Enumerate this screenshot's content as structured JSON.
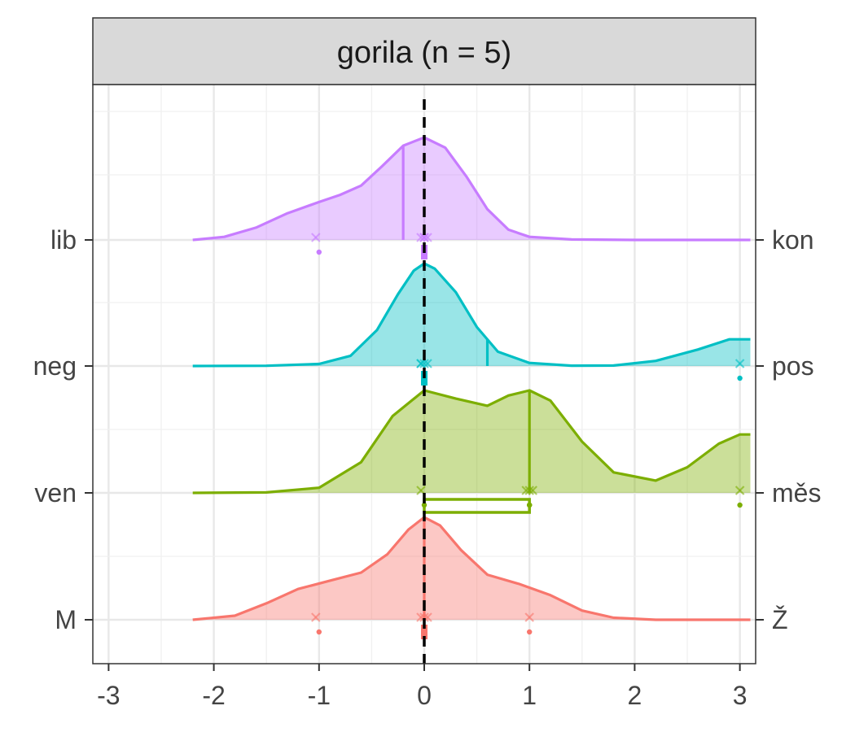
{
  "chart_data": {
    "type": "ridgeline",
    "facet_title": "gorila (n = 5)",
    "xlabel": "",
    "ylabel": "",
    "xlim": [
      -3.15,
      3.15
    ],
    "x_ticks": [
      "-3",
      "-2",
      "-1",
      "0",
      "1",
      "2",
      "3"
    ],
    "x_tick_values": [
      -3,
      -2,
      -1,
      0,
      1,
      2,
      3
    ],
    "reference_line_x": 0,
    "grid": true,
    "legend": "none",
    "series": [
      {
        "left_label": "lib",
        "right_label": "kon",
        "color": "#C77CFF",
        "density_x": [
          -2.2,
          -1.9,
          -1.6,
          -1.3,
          -1.0,
          -0.8,
          -0.6,
          -0.4,
          -0.2,
          0.0,
          0.2,
          0.4,
          0.6,
          0.8,
          1.0,
          1.4,
          2.0,
          3.1
        ],
        "density_y": [
          0.0,
          0.03,
          0.12,
          0.26,
          0.37,
          0.44,
          0.53,
          0.72,
          0.92,
          1.0,
          0.9,
          0.62,
          0.3,
          0.1,
          0.03,
          0.005,
          0.0,
          0.0
        ],
        "median_x": -0.2,
        "points_x": [
          -1.0,
          0.0,
          0.0,
          0.0,
          0.0
        ]
      },
      {
        "left_label": "neg",
        "right_label": "pos",
        "color": "#00BFC4",
        "density_x": [
          -2.2,
          -1.5,
          -1.0,
          -0.7,
          -0.45,
          -0.25,
          -0.1,
          0.0,
          0.1,
          0.3,
          0.5,
          0.7,
          1.0,
          1.4,
          1.8,
          2.2,
          2.6,
          2.9,
          3.1
        ],
        "density_y": [
          0.0,
          0.002,
          0.02,
          0.1,
          0.35,
          0.7,
          0.93,
          1.0,
          0.95,
          0.72,
          0.38,
          0.14,
          0.03,
          0.003,
          0.005,
          0.05,
          0.16,
          0.26,
          0.26
        ],
        "median_x": 0.6,
        "points_x": [
          0.0,
          0.0,
          0.0,
          0.0,
          3.0
        ]
      },
      {
        "left_label": "ven",
        "right_label": "měs",
        "color": "#7CAE00",
        "density_x": [
          -2.2,
          -1.5,
          -1.0,
          -0.6,
          -0.3,
          0.0,
          0.3,
          0.6,
          0.8,
          1.0,
          1.2,
          1.5,
          1.8,
          2.2,
          2.5,
          2.8,
          3.0,
          3.1
        ],
        "density_y": [
          0.0,
          0.005,
          0.05,
          0.3,
          0.75,
          1.0,
          0.92,
          0.85,
          0.95,
          1.0,
          0.9,
          0.5,
          0.2,
          0.12,
          0.25,
          0.48,
          0.57,
          0.57
        ],
        "median_x": 1.0,
        "box": [
          0.0,
          1.0
        ],
        "points_x": [
          0.0,
          1.0,
          1.0,
          1.0,
          3.0
        ]
      },
      {
        "left_label": "M",
        "right_label": "Ž",
        "color": "#F8766D",
        "density_x": [
          -2.2,
          -1.8,
          -1.5,
          -1.2,
          -0.9,
          -0.6,
          -0.35,
          -0.15,
          0.0,
          0.15,
          0.35,
          0.6,
          0.9,
          1.2,
          1.5,
          1.8,
          2.2,
          3.1
        ],
        "density_y": [
          0.0,
          0.04,
          0.16,
          0.3,
          0.38,
          0.46,
          0.64,
          0.88,
          1.0,
          0.92,
          0.68,
          0.44,
          0.35,
          0.24,
          0.09,
          0.02,
          0.0,
          0.0
        ],
        "median_x": 0.0,
        "points_x": [
          -1.0,
          0.0,
          0.0,
          0.0,
          1.0
        ]
      }
    ]
  }
}
